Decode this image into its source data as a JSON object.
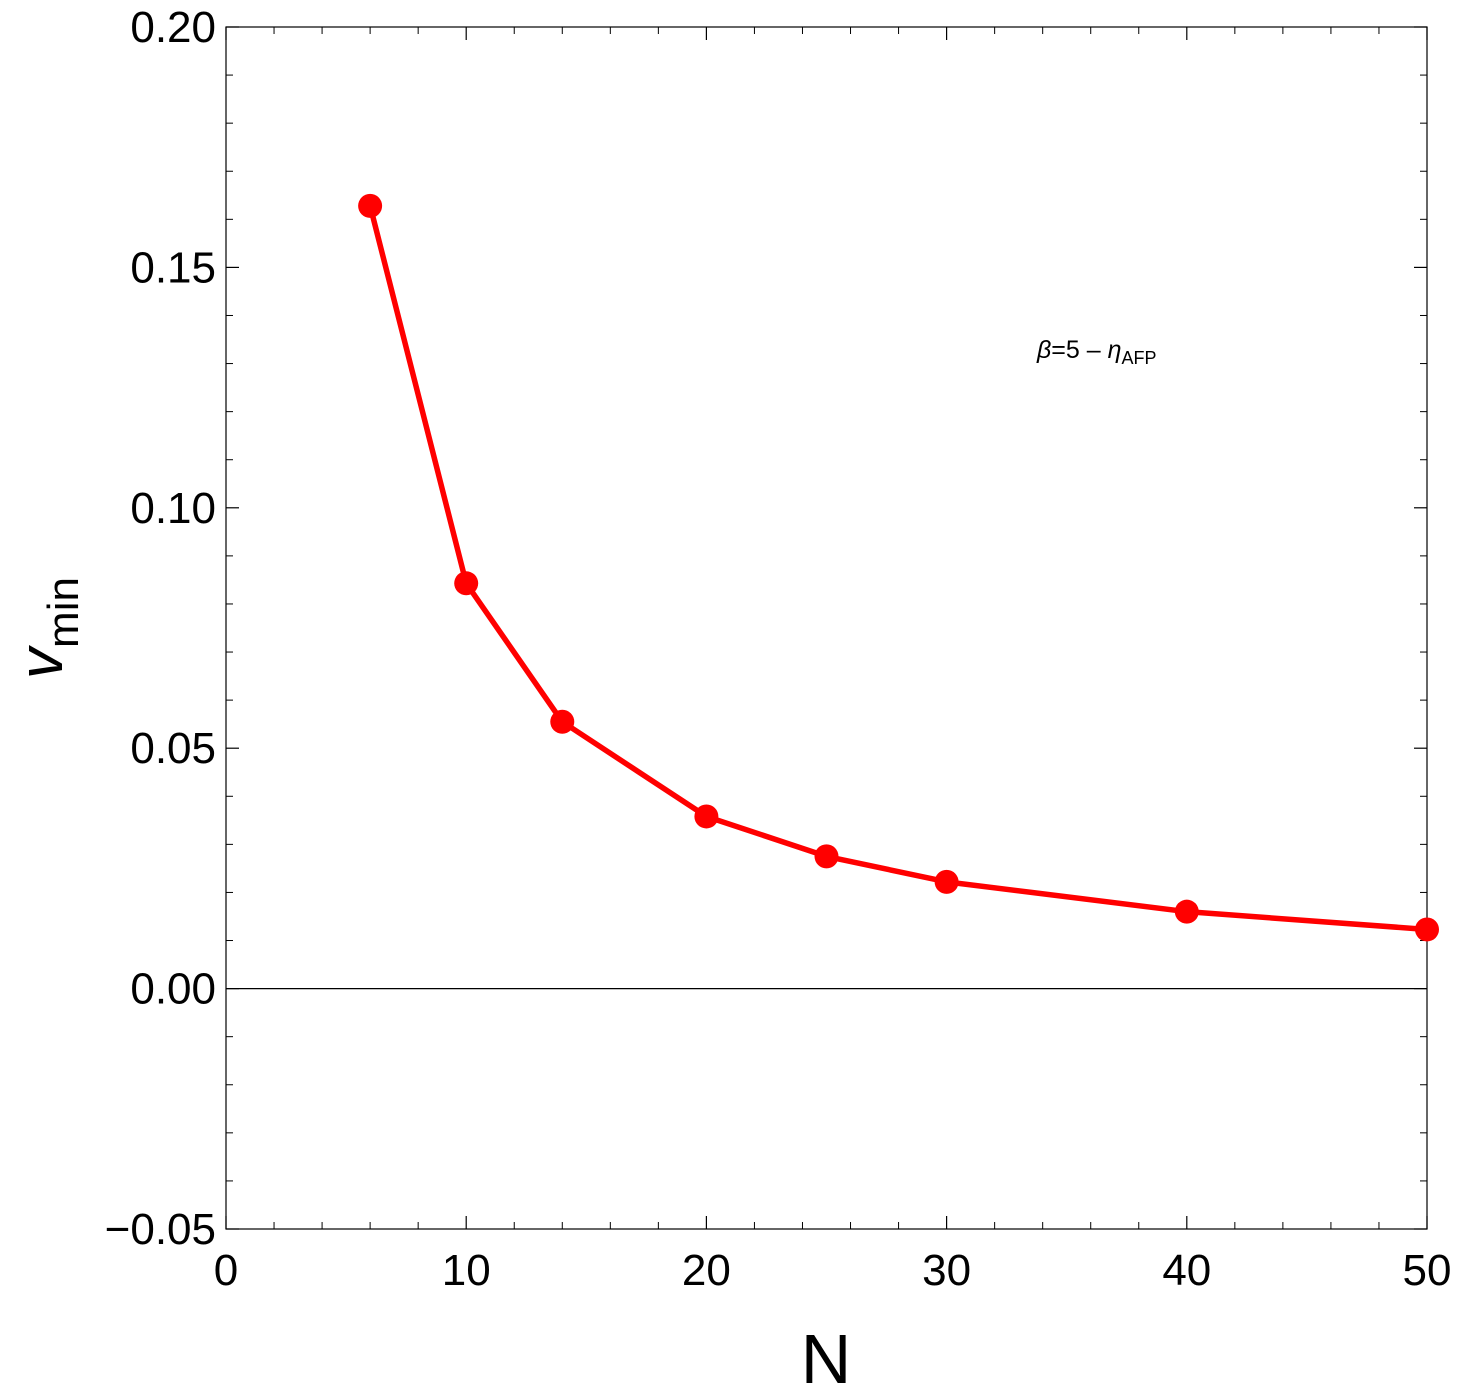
{
  "chart_data": {
    "type": "line",
    "xlabel": "N",
    "ylabel": {
      "main": "v",
      "sub": "min"
    },
    "xlim": [
      0,
      50
    ],
    "ylim": [
      -0.05,
      0.2
    ],
    "x_ticks": [
      0,
      10,
      20,
      30,
      40,
      50
    ],
    "x_tick_labels": [
      "0",
      "10",
      "20",
      "30",
      "40",
      "50"
    ],
    "y_ticks": [
      -0.05,
      0.0,
      0.05,
      0.1,
      0.15,
      0.2
    ],
    "y_tick_labels": [
      "−0.05",
      "0.00",
      "0.05",
      "0.10",
      "0.15",
      "0.20"
    ],
    "x_minor_step": 2,
    "y_minor_step": 0.01,
    "zero_line": true,
    "grid": false,
    "annotation": {
      "beta": "β",
      "eq": "=5 – ",
      "eta": "η",
      "sub": "AFP"
    },
    "series": [
      {
        "color": "#ff0000",
        "marker": "circle",
        "x": [
          6,
          10,
          14,
          20,
          25,
          30,
          40,
          50
        ],
        "y": [
          0.1628,
          0.0843,
          0.0555,
          0.0358,
          0.0275,
          0.0222,
          0.016,
          0.0123
        ]
      }
    ]
  }
}
